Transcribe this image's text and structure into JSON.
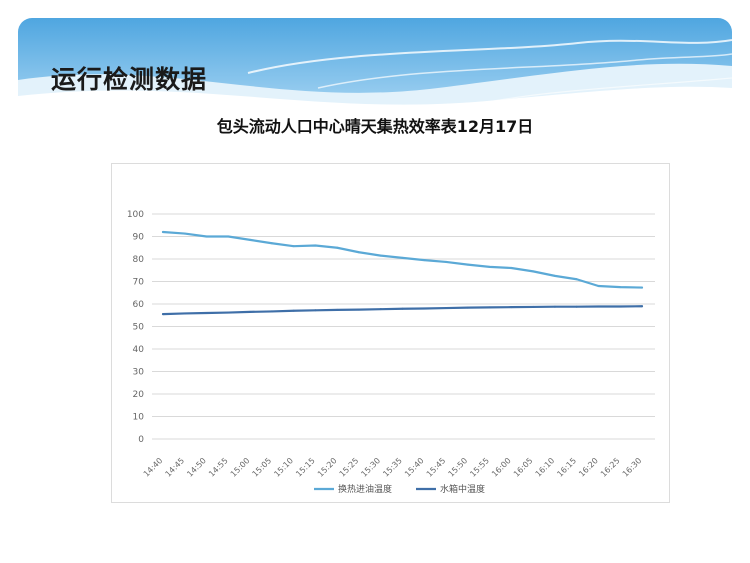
{
  "slide": {
    "title": "运行检测数据"
  },
  "colors": {
    "banner_light": "#cfe8f7",
    "banner_mid": "#6fb8e6",
    "banner_dark": "#2a7ec6",
    "series_1": "#5ba9d6",
    "series_2": "#3f6fa8",
    "grid": "#d9d9d9"
  },
  "chart_data": {
    "type": "line",
    "title": "包头流动人口中心晴天集热效率表12月17日",
    "xlabel": "",
    "ylabel": "",
    "ylim": [
      0,
      100
    ],
    "yticks": [
      0,
      10,
      20,
      30,
      40,
      50,
      60,
      70,
      80,
      90,
      100
    ],
    "grid": true,
    "legend_position": "bottom",
    "categories": [
      "14:40",
      "14:45",
      "14:50",
      "14:55",
      "15:00",
      "15:05",
      "15:10",
      "15:15",
      "15:20",
      "15:25",
      "15:30",
      "15:35",
      "15:40",
      "15:45",
      "15:50",
      "15:55",
      "16:00",
      "16:05",
      "16:10",
      "16:15",
      "16:20",
      "16:25",
      "16:30"
    ],
    "series": [
      {
        "name": "换热进油温度",
        "color": "#5ba9d6",
        "values": [
          92,
          91.3,
          90,
          90,
          88.5,
          87,
          85.7,
          86,
          85,
          83,
          81.5,
          80.5,
          79.5,
          78.7,
          77.5,
          76.5,
          76,
          74.5,
          72.5,
          71,
          68,
          67.5,
          67.3
        ]
      },
      {
        "name": "水箱中温度",
        "color": "#3f6fa8",
        "values": [
          55.5,
          55.8,
          56,
          56.2,
          56.5,
          56.7,
          57,
          57.2,
          57.4,
          57.5,
          57.7,
          57.9,
          58,
          58.2,
          58.4,
          58.5,
          58.6,
          58.7,
          58.8,
          58.8,
          58.9,
          58.9,
          59
        ]
      }
    ]
  }
}
